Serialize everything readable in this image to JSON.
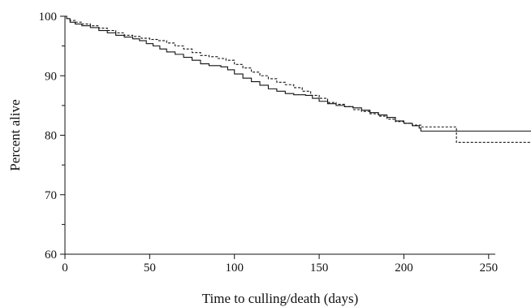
{
  "chart_data": {
    "type": "line",
    "title": "",
    "xlabel": "Time to culling/death (days)",
    "ylabel": "Percent alive",
    "xlim": [
      0,
      275
    ],
    "ylim": [
      60,
      100
    ],
    "x_ticks": [
      0,
      50,
      100,
      150,
      200,
      250
    ],
    "y_ticks": [
      60,
      70,
      80,
      90,
      100
    ],
    "y_minor_ticks": [
      65,
      75,
      85,
      95
    ],
    "legend": "none",
    "grid": false,
    "series": [
      {
        "style": "solid",
        "step": true,
        "points": [
          [
            0,
            100
          ],
          [
            1,
            99.6
          ],
          [
            3,
            99.0
          ],
          [
            6,
            98.7
          ],
          [
            10,
            98.4
          ],
          [
            15,
            98.1
          ],
          [
            20,
            97.6
          ],
          [
            25,
            97.2
          ],
          [
            30,
            96.8
          ],
          [
            35,
            96.5
          ],
          [
            40,
            96.2
          ],
          [
            44,
            95.9
          ],
          [
            48,
            95.4
          ],
          [
            52,
            95.0
          ],
          [
            56,
            94.5
          ],
          [
            60,
            94.0
          ],
          [
            65,
            93.6
          ],
          [
            70,
            93.1
          ],
          [
            75,
            92.6
          ],
          [
            80,
            92.0
          ],
          [
            85,
            91.7
          ],
          [
            92,
            91.5
          ],
          [
            96,
            91.0
          ],
          [
            100,
            90.3
          ],
          [
            105,
            89.6
          ],
          [
            110,
            89.0
          ],
          [
            115,
            88.4
          ],
          [
            120,
            87.8
          ],
          [
            125,
            87.4
          ],
          [
            130,
            87.0
          ],
          [
            135,
            86.8
          ],
          [
            142,
            86.7
          ],
          [
            146,
            86.2
          ],
          [
            150,
            85.7
          ],
          [
            155,
            85.3
          ],
          [
            160,
            85.0
          ],
          [
            165,
            84.8
          ],
          [
            170,
            84.6
          ],
          [
            175,
            84.2
          ],
          [
            180,
            83.8
          ],
          [
            185,
            83.4
          ],
          [
            190,
            83.0
          ],
          [
            195,
            82.4
          ],
          [
            200,
            82.0
          ],
          [
            205,
            81.6
          ],
          [
            209,
            81.2
          ],
          [
            210,
            80.7
          ],
          [
            275,
            80.7
          ]
        ]
      },
      {
        "style": "dashed",
        "step": true,
        "points": [
          [
            0,
            100
          ],
          [
            1,
            99.6
          ],
          [
            3,
            99.3
          ],
          [
            6,
            99.0
          ],
          [
            10,
            98.7
          ],
          [
            15,
            98.4
          ],
          [
            20,
            98.0
          ],
          [
            25,
            97.6
          ],
          [
            30,
            97.2
          ],
          [
            35,
            96.8
          ],
          [
            40,
            96.6
          ],
          [
            45,
            96.3
          ],
          [
            50,
            96.1
          ],
          [
            55,
            95.9
          ],
          [
            60,
            95.5
          ],
          [
            65,
            95.0
          ],
          [
            70,
            94.5
          ],
          [
            75,
            93.9
          ],
          [
            80,
            93.4
          ],
          [
            85,
            93.2
          ],
          [
            90,
            92.9
          ],
          [
            95,
            92.6
          ],
          [
            100,
            91.9
          ],
          [
            105,
            91.3
          ],
          [
            110,
            90.6
          ],
          [
            115,
            90.0
          ],
          [
            120,
            89.5
          ],
          [
            125,
            88.9
          ],
          [
            130,
            88.5
          ],
          [
            135,
            88.0
          ],
          [
            140,
            87.4
          ],
          [
            145,
            86.7
          ],
          [
            150,
            86.2
          ],
          [
            155,
            85.5
          ],
          [
            160,
            85.2
          ],
          [
            165,
            84.8
          ],
          [
            170,
            84.3
          ],
          [
            175,
            84.0
          ],
          [
            180,
            83.6
          ],
          [
            185,
            83.2
          ],
          [
            190,
            82.7
          ],
          [
            195,
            82.3
          ],
          [
            200,
            82.0
          ],
          [
            205,
            81.7
          ],
          [
            210,
            81.4
          ],
          [
            230,
            81.4
          ],
          [
            231,
            78.8
          ],
          [
            275,
            78.8
          ]
        ]
      }
    ]
  }
}
